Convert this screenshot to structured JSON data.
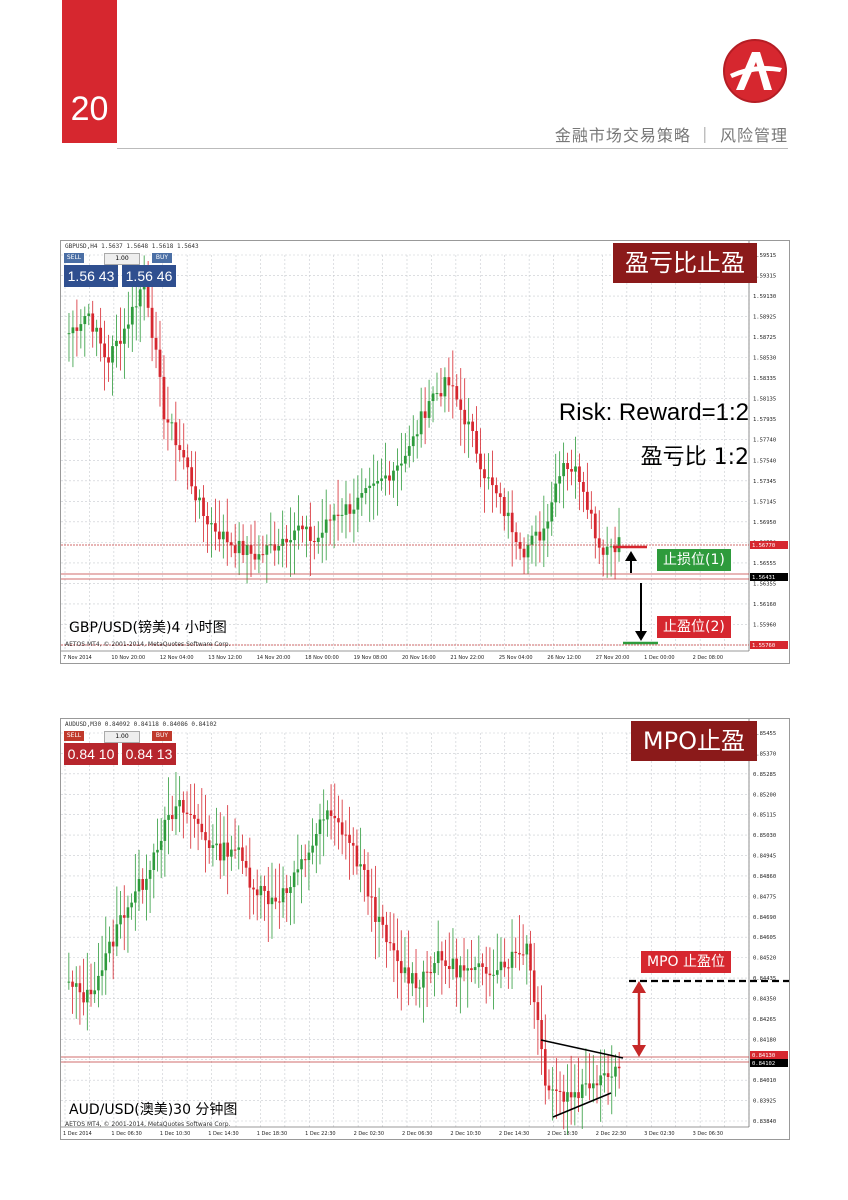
{
  "header": {
    "page_number": "20",
    "title": "金融市场交易策略 ｜ 风险管理",
    "colors": {
      "accent": "#d6272f",
      "badge": "#8b1a1a",
      "green_label": "#2e9b3c",
      "red_label": "#d6272f"
    }
  },
  "chart1": {
    "symbol_info": "GBPUSD,H4  1.5637 1.5648 1.5618 1.5643",
    "trade_panel": {
      "sell": "SELL",
      "buy": "BUY",
      "lot": "1.00",
      "sell_price": "1.56 43",
      "buy_price": "1.56 46"
    },
    "badge": "盈亏比止盈",
    "risk_reward_en": "Risk: Reward=1:2",
    "risk_reward_cn": "盈亏比 1:2",
    "stop_loss_label": "止损位(1)",
    "take_profit_label": "止盈位(2)",
    "caption": "GBP/USD(镑美)4 小时图",
    "copyright": "AETOS MT4, © 2001-2014, MetaQuotes Software Corp.",
    "price_labels": [
      "1.59515",
      "1.59315",
      "1.59130",
      "1.58925",
      "1.58725",
      "1.58530",
      "1.58335",
      "1.58135",
      "1.57935",
      "1.57740",
      "1.57540",
      "1.57345",
      "1.57145",
      "1.56950",
      "1.56750",
      "1.56555",
      "1.56355",
      "1.56160",
      "1.55960",
      "1.55760"
    ],
    "highlight_prices": {
      "top": "1.56770",
      "current": "1.56431",
      "bottom": "1.55760"
    },
    "time_labels": [
      "7 Nov 2014",
      "10 Nov 20:00",
      "12 Nov 04:00",
      "13 Nov 12:00",
      "14 Nov 20:00",
      "18 Nov 00:00",
      "19 Nov 08:00",
      "20 Nov 16:00",
      "21 Nov 22:00",
      "25 Nov 04:00",
      "26 Nov 12:00",
      "27 Nov 20:00",
      "1 Dec 00:00",
      "2 Dec 08:00"
    ]
  },
  "chart2": {
    "symbol_info": "AUDUSD,M30  0.84092 0.84118 0.84086 0.84102",
    "trade_panel": {
      "sell": "SELL",
      "buy": "BUY",
      "lot": "1.00",
      "sell_price": "0.84 10",
      "buy_price": "0.84 13"
    },
    "badge": "MPO止盈",
    "mpo_label": "MPO 止盈位",
    "caption": "AUD/USD(澳美)30 分钟图",
    "copyright": "AETOS MT4, © 2001-2014, MetaQuotes Software Corp.",
    "price_labels": [
      "0.85455",
      "0.85370",
      "0.85285",
      "0.85200",
      "0.85115",
      "0.85030",
      "0.84945",
      "0.84860",
      "0.84775",
      "0.84690",
      "0.84605",
      "0.84520",
      "0.84435",
      "0.84350",
      "0.84265",
      "0.84180",
      "0.84095",
      "0.84010",
      "0.83925",
      "0.83840"
    ],
    "highlight_prices": {
      "top": "0.84130",
      "current": "0.84102"
    },
    "time_labels": [
      "1 Dec 2014",
      "1 Dec 06:30",
      "1 Dec 10:30",
      "1 Dec 14:30",
      "1 Dec 18:30",
      "1 Dec 22:30",
      "2 Dec 02:30",
      "2 Dec 06:30",
      "2 Dec 10:30",
      "2 Dec 14:30",
      "2 Dec 18:30",
      "2 Dec 22:30",
      "3 Dec 02:30",
      "3 Dec 06:30"
    ]
  }
}
